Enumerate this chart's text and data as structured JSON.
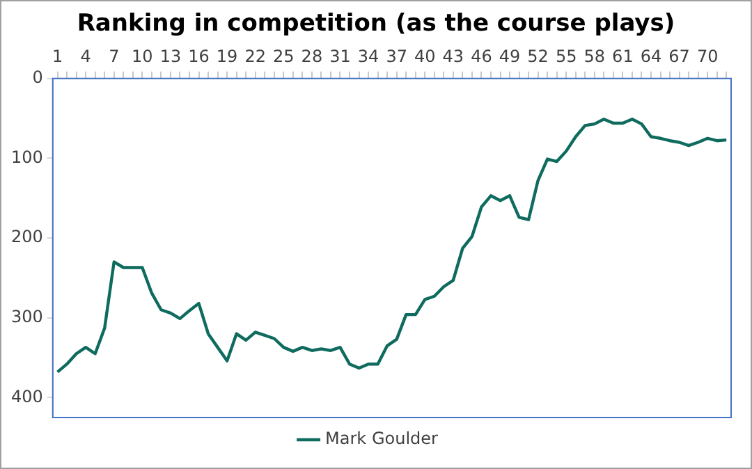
{
  "chart_data": {
    "type": "line",
    "title": "Ranking in competition (as the course plays)",
    "categories": [
      "1",
      null,
      null,
      "4",
      null,
      null,
      "7",
      null,
      null,
      "10",
      null,
      null,
      "13",
      null,
      null,
      "16",
      null,
      null,
      "19",
      null,
      null,
      "22",
      null,
      null,
      "25",
      null,
      null,
      "28",
      null,
      null,
      "31",
      null,
      null,
      "34",
      null,
      null,
      "37",
      null,
      null,
      "40",
      null,
      null,
      "43",
      null,
      null,
      "46",
      null,
      null,
      "49",
      null,
      null,
      "52",
      null,
      null,
      "55",
      null,
      null,
      "58",
      null,
      null,
      "61",
      null,
      null,
      "64",
      null,
      null,
      "67",
      null,
      null,
      "70",
      null,
      null
    ],
    "series": [
      {
        "name": "Mark Goulder",
        "color": "#0e6b5e",
        "values": [
          368,
          358,
          345,
          337,
          345,
          313,
          230,
          237,
          237,
          237,
          269,
          290,
          294,
          301,
          291,
          282,
          320,
          337,
          354,
          320,
          328,
          318,
          322,
          326,
          337,
          342,
          337,
          341,
          339,
          341,
          337,
          358,
          363,
          358,
          358,
          335,
          327,
          296,
          296,
          277,
          273,
          261,
          253,
          213,
          198,
          161,
          147,
          153,
          147,
          174,
          177,
          128,
          101,
          104,
          91,
          73,
          59,
          57,
          51,
          56,
          56,
          51,
          57,
          73,
          75,
          78,
          80,
          84,
          80,
          75,
          78,
          77
        ]
      }
    ],
    "ylim": [
      425,
      0
    ],
    "yticks": [
      0,
      100,
      200,
      300,
      400
    ],
    "grid": false,
    "legend": "bottom",
    "marker": "none",
    "line_style": "solid"
  }
}
